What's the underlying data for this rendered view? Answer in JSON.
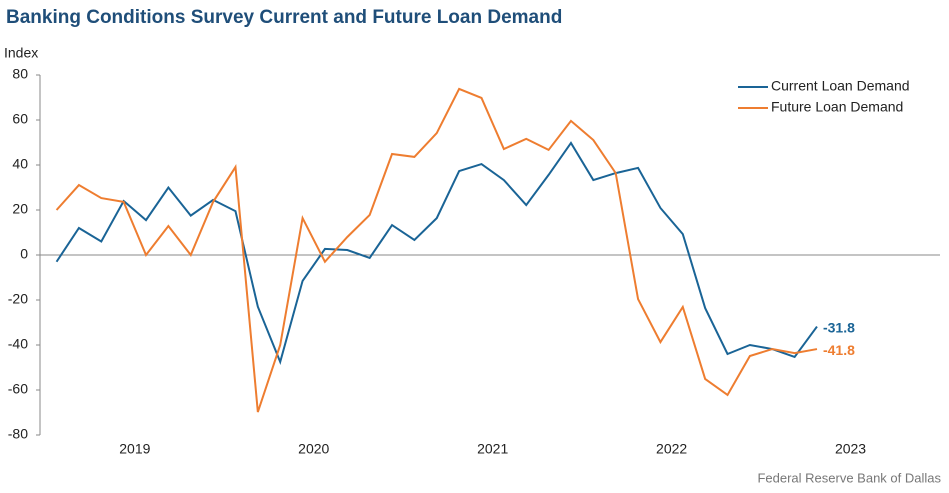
{
  "chart_data": {
    "type": "line",
    "title": "Banking Conditions Survey Current and Future Loan Demand",
    "y_label": "Index",
    "source": "Federal Reserve Bank of Dallas",
    "x": [
      2019.0625,
      2019.1875,
      2019.3125,
      2019.4375,
      2019.5625,
      2019.6875,
      2019.8125,
      2019.9375,
      2020.0625,
      2020.1875,
      2020.3125,
      2020.4375,
      2020.5625,
      2020.6875,
      2020.8125,
      2020.9375,
      2021.0625,
      2021.1875,
      2021.3125,
      2021.4375,
      2021.5625,
      2021.6875,
      2021.8125,
      2021.9375,
      2022.0625,
      2022.1875,
      2022.3125,
      2022.4375,
      2022.5625,
      2022.6875,
      2022.8125,
      2022.9375,
      2023.0625,
      2023.1875,
      2023.3125
    ],
    "series": [
      {
        "name": "Current Loan Demand",
        "color": "#1a6496",
        "values": [
          -3,
          12,
          6,
          24,
          15.5,
          30,
          17.5,
          24.5,
          19.5,
          -23,
          -47.5,
          -11.5,
          2.7,
          2.2,
          -1.3,
          13.3,
          6.7,
          16.4,
          37.3,
          40.4,
          33.3,
          22.2,
          35.6,
          49.8,
          33.3,
          36.4,
          38.7,
          20.9,
          9.3,
          -23.6,
          -44,
          -40,
          -41.8,
          -45.3,
          -31.8
        ]
      },
      {
        "name": "Future Loan Demand",
        "color": "#ee7d30",
        "values": [
          20,
          31.1,
          25.3,
          23.6,
          0,
          12.9,
          0,
          23.6,
          39.1,
          -69.8,
          -40,
          16.4,
          -3,
          8,
          17.8,
          44.9,
          43.6,
          54.2,
          73.8,
          69.8,
          47.1,
          51.6,
          46.7,
          59.6,
          51.1,
          36.4,
          -19.6,
          -38.7,
          -23.1,
          -55.1,
          -62.2,
          -44.9,
          -41.8,
          -43.6,
          -41.8
        ]
      }
    ],
    "xlim": [
      2018.97,
      2024
    ],
    "xticks": [
      {
        "value": 2019.5,
        "label": "2019"
      },
      {
        "value": 2020.5,
        "label": "2020"
      },
      {
        "value": 2021.5,
        "label": "2021"
      },
      {
        "value": 2022.5,
        "label": "2022"
      },
      {
        "value": 2023.5,
        "label": "2023"
      }
    ],
    "ylim": [
      -80,
      80
    ],
    "yticks": [
      -80,
      -60,
      -40,
      -20,
      0,
      20,
      40,
      60,
      80
    ],
    "legend": "top-right"
  }
}
